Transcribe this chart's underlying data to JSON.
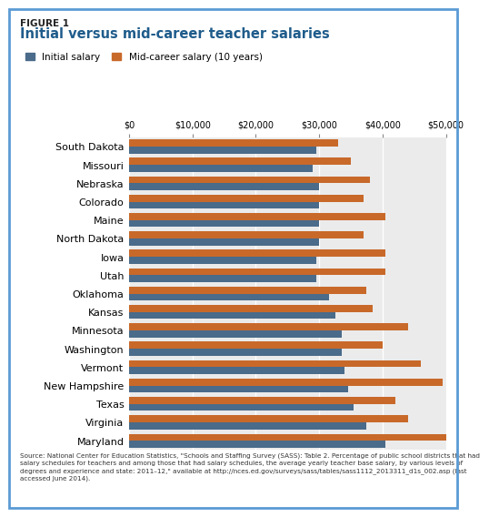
{
  "title_fig": "FIGURE 1",
  "title_main": "Initial versus mid-career teacher salaries",
  "legend_initial": "Initial salary",
  "legend_mid": "Mid-career salary (10 years)",
  "states": [
    "South Dakota",
    "Missouri",
    "Nebraska",
    "Colorado",
    "Maine",
    "North Dakota",
    "Iowa",
    "Utah",
    "Oklahoma",
    "Kansas",
    "Minnesota",
    "Washington",
    "Vermont",
    "New Hampshire",
    "Texas",
    "Virginia",
    "Maryland"
  ],
  "initial_salary": [
    29500,
    29000,
    30000,
    30000,
    30000,
    30000,
    29500,
    29500,
    31500,
    32500,
    33500,
    33500,
    34000,
    34500,
    35500,
    37500,
    40500
  ],
  "mid_career_salary": [
    33000,
    35000,
    38000,
    37000,
    40500,
    37000,
    40500,
    40500,
    37500,
    38500,
    44000,
    40000,
    46000,
    49500,
    42000,
    44000,
    50000
  ],
  "initial_color": "#4a6b8a",
  "mid_color": "#c8692a",
  "xlim": [
    0,
    50000
  ],
  "xticks": [
    0,
    10000,
    20000,
    30000,
    40000,
    50000
  ],
  "xticklabels": [
    "$0",
    "$10,000",
    "$20,000",
    "$30,000",
    "$40,000",
    "$50,000"
  ],
  "background_color": "#ffffff",
  "border_color": "#5b9bd5",
  "source_text": "Source: National Center for Education Statistics, \"Schools and Staffing Survey (SASS): Table 2. Percentage of public school districts that had\nsalary schedules for teachers and among those that had salary schedules, the average yearly teacher base salary, by various levels of\ndegrees and experience and state: 2011–12,\" available at http://nces.ed.gov/surveys/sass/tables/sass1112_2013311_d1s_002.asp (last\naccessed June 2014)."
}
